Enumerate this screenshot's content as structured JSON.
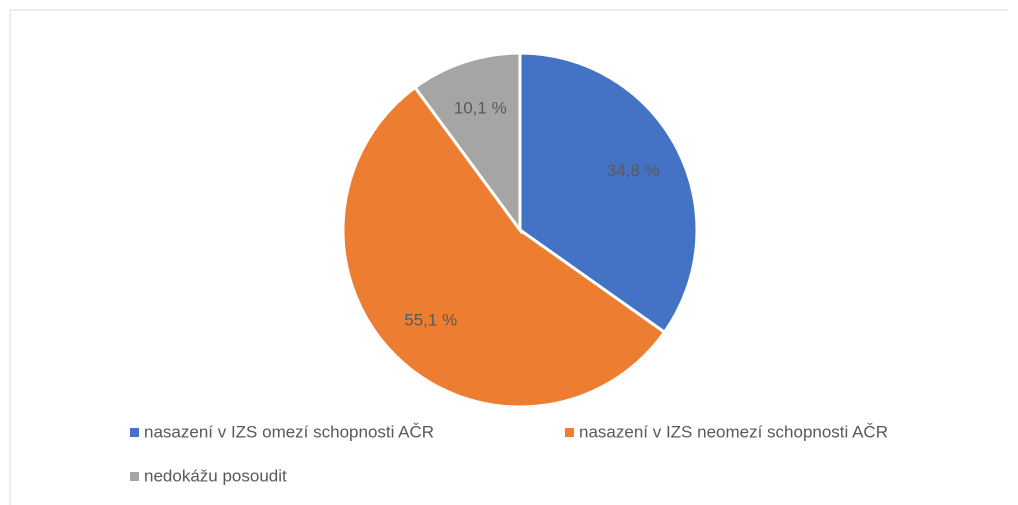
{
  "chart_data": {
    "type": "pie",
    "categories": [
      "nasazení v IZS omezí schopnosti AČR",
      "nasazení v IZS neomezí schopnosti AČR",
      "nedokážu posoudit"
    ],
    "values": [
      34.8,
      55.1,
      10.1
    ],
    "value_labels": [
      "34,8 %",
      "55,1 %",
      "10,1 %"
    ],
    "colors": [
      "#4472c4",
      "#ed7d31",
      "#a5a5a5"
    ],
    "legend": "bottom"
  }
}
